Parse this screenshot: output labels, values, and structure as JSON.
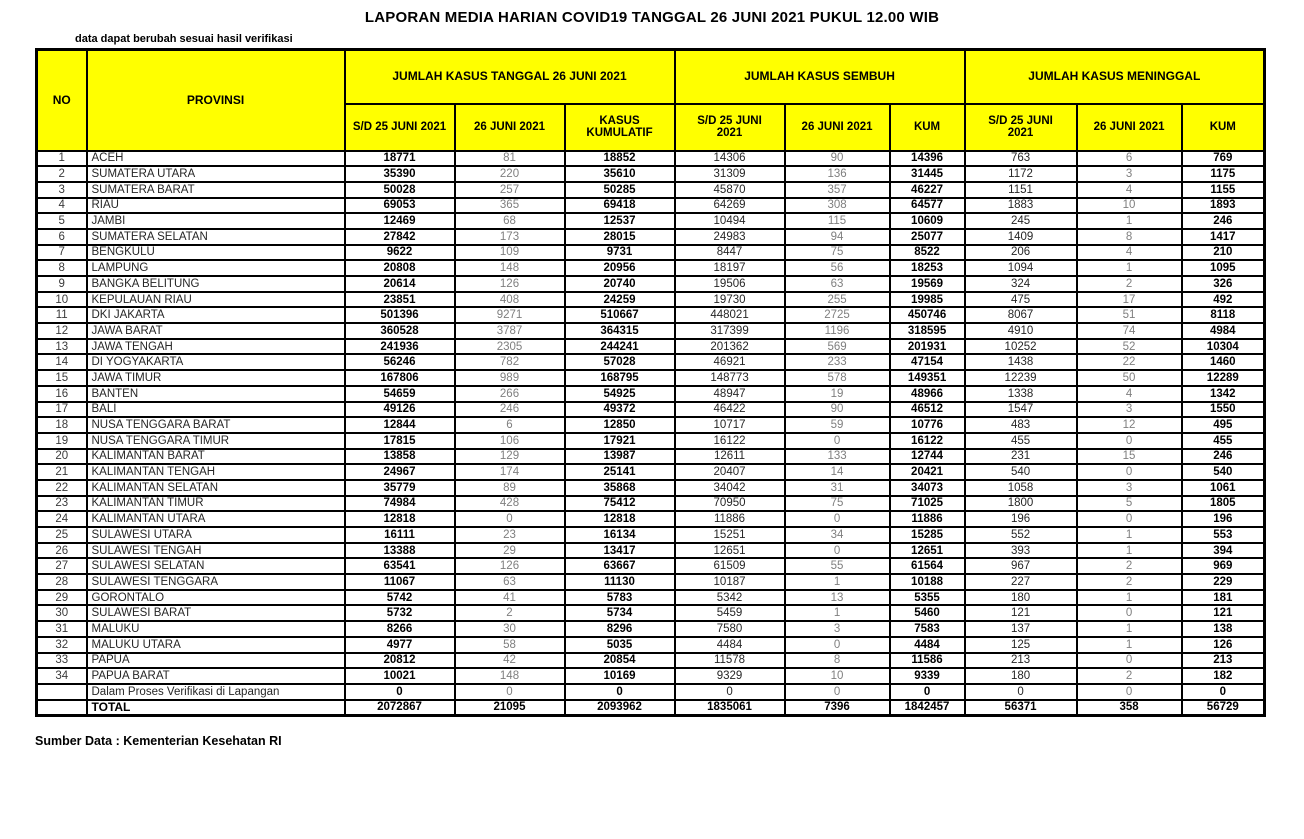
{
  "title": "LAPORAN MEDIA HARIAN COVID19 TANGGAL 26 JUNI 2021 PUKUL 12.00 WIB",
  "note": "data dapat berubah sesuai hasil verifikasi",
  "source": "Sumber Data : Kementerian Kesehatan RI",
  "colors": {
    "header_bg": "#ffff00",
    "border": "#000000",
    "bold_text": "#000000",
    "muted_text": "#7f7f7f"
  },
  "table": {
    "header": {
      "no": "NO",
      "provinsi": "PROVINSI",
      "groups": [
        {
          "label": "JUMLAH KASUS TANGGAL 26 JUNI 2021",
          "cols": [
            "S/D 25 JUNI 2021",
            "26 JUNI 2021",
            "KASUS KUMULATIF"
          ]
        },
        {
          "label": "JUMLAH KASUS SEMBUH",
          "cols": [
            "S/D 25 JUNI 2021",
            "26 JUNI 2021",
            "KUM"
          ]
        },
        {
          "label": "JUMLAH KASUS MENINGGAL",
          "cols": [
            "S/D 25 JUNI 2021",
            "26 JUNI 2021",
            "KUM"
          ]
        }
      ]
    },
    "rows": [
      {
        "no": "1",
        "provinsi": "ACEH",
        "values": [
          "18771",
          "81",
          "18852",
          "14306",
          "90",
          "14396",
          "763",
          "6",
          "769"
        ]
      },
      {
        "no": "2",
        "provinsi": "SUMATERA UTARA",
        "values": [
          "35390",
          "220",
          "35610",
          "31309",
          "136",
          "31445",
          "1172",
          "3",
          "1175"
        ]
      },
      {
        "no": "3",
        "provinsi": "SUMATERA BARAT",
        "values": [
          "50028",
          "257",
          "50285",
          "45870",
          "357",
          "46227",
          "1151",
          "4",
          "1155"
        ]
      },
      {
        "no": "4",
        "provinsi": "RIAU",
        "values": [
          "69053",
          "365",
          "69418",
          "64269",
          "308",
          "64577",
          "1883",
          "10",
          "1893"
        ]
      },
      {
        "no": "5",
        "provinsi": "JAMBI",
        "values": [
          "12469",
          "68",
          "12537",
          "10494",
          "115",
          "10609",
          "245",
          "1",
          "246"
        ]
      },
      {
        "no": "6",
        "provinsi": "SUMATERA SELATAN",
        "values": [
          "27842",
          "173",
          "28015",
          "24983",
          "94",
          "25077",
          "1409",
          "8",
          "1417"
        ]
      },
      {
        "no": "7",
        "provinsi": "BENGKULU",
        "values": [
          "9622",
          "109",
          "9731",
          "8447",
          "75",
          "8522",
          "206",
          "4",
          "210"
        ]
      },
      {
        "no": "8",
        "provinsi": "LAMPUNG",
        "values": [
          "20808",
          "148",
          "20956",
          "18197",
          "56",
          "18253",
          "1094",
          "1",
          "1095"
        ]
      },
      {
        "no": "9",
        "provinsi": "BANGKA BELITUNG",
        "values": [
          "20614",
          "126",
          "20740",
          "19506",
          "63",
          "19569",
          "324",
          "2",
          "326"
        ]
      },
      {
        "no": "10",
        "provinsi": "KEPULAUAN RIAU",
        "values": [
          "23851",
          "408",
          "24259",
          "19730",
          "255",
          "19985",
          "475",
          "17",
          "492"
        ]
      },
      {
        "no": "11",
        "provinsi": "DKI JAKARTA",
        "values": [
          "501396",
          "9271",
          "510667",
          "448021",
          "2725",
          "450746",
          "8067",
          "51",
          "8118"
        ]
      },
      {
        "no": "12",
        "provinsi": "JAWA BARAT",
        "values": [
          "360528",
          "3787",
          "364315",
          "317399",
          "1196",
          "318595",
          "4910",
          "74",
          "4984"
        ]
      },
      {
        "no": "13",
        "provinsi": "JAWA TENGAH",
        "values": [
          "241936",
          "2305",
          "244241",
          "201362",
          "569",
          "201931",
          "10252",
          "52",
          "10304"
        ]
      },
      {
        "no": "14",
        "provinsi": "DI YOGYAKARTA",
        "values": [
          "56246",
          "782",
          "57028",
          "46921",
          "233",
          "47154",
          "1438",
          "22",
          "1460"
        ]
      },
      {
        "no": "15",
        "provinsi": "JAWA TIMUR",
        "values": [
          "167806",
          "989",
          "168795",
          "148773",
          "578",
          "149351",
          "12239",
          "50",
          "12289"
        ]
      },
      {
        "no": "16",
        "provinsi": "BANTEN",
        "values": [
          "54659",
          "266",
          "54925",
          "48947",
          "19",
          "48966",
          "1338",
          "4",
          "1342"
        ]
      },
      {
        "no": "17",
        "provinsi": "BALI",
        "values": [
          "49126",
          "246",
          "49372",
          "46422",
          "90",
          "46512",
          "1547",
          "3",
          "1550"
        ]
      },
      {
        "no": "18",
        "provinsi": "NUSA TENGGARA BARAT",
        "values": [
          "12844",
          "6",
          "12850",
          "10717",
          "59",
          "10776",
          "483",
          "12",
          "495"
        ]
      },
      {
        "no": "19",
        "provinsi": "NUSA TENGGARA TIMUR",
        "values": [
          "17815",
          "106",
          "17921",
          "16122",
          "0",
          "16122",
          "455",
          "0",
          "455"
        ]
      },
      {
        "no": "20",
        "provinsi": "KALIMANTAN BARAT",
        "values": [
          "13858",
          "129",
          "13987",
          "12611",
          "133",
          "12744",
          "231",
          "15",
          "246"
        ]
      },
      {
        "no": "21",
        "provinsi": "KALIMANTAN TENGAH",
        "values": [
          "24967",
          "174",
          "25141",
          "20407",
          "14",
          "20421",
          "540",
          "0",
          "540"
        ]
      },
      {
        "no": "22",
        "provinsi": "KALIMANTAN SELATAN",
        "values": [
          "35779",
          "89",
          "35868",
          "34042",
          "31",
          "34073",
          "1058",
          "3",
          "1061"
        ]
      },
      {
        "no": "23",
        "provinsi": "KALIMANTAN TIMUR",
        "values": [
          "74984",
          "428",
          "75412",
          "70950",
          "75",
          "71025",
          "1800",
          "5",
          "1805"
        ]
      },
      {
        "no": "24",
        "provinsi": "KALIMANTAN UTARA",
        "values": [
          "12818",
          "0",
          "12818",
          "11886",
          "0",
          "11886",
          "196",
          "0",
          "196"
        ]
      },
      {
        "no": "25",
        "provinsi": "SULAWESI UTARA",
        "values": [
          "16111",
          "23",
          "16134",
          "15251",
          "34",
          "15285",
          "552",
          "1",
          "553"
        ]
      },
      {
        "no": "26",
        "provinsi": "SULAWESI TENGAH",
        "values": [
          "13388",
          "29",
          "13417",
          "12651",
          "0",
          "12651",
          "393",
          "1",
          "394"
        ]
      },
      {
        "no": "27",
        "provinsi": "SULAWESI SELATAN",
        "values": [
          "63541",
          "126",
          "63667",
          "61509",
          "55",
          "61564",
          "967",
          "2",
          "969"
        ]
      },
      {
        "no": "28",
        "provinsi": "SULAWESI TENGGARA",
        "values": [
          "11067",
          "63",
          "11130",
          "10187",
          "1",
          "10188",
          "227",
          "2",
          "229"
        ]
      },
      {
        "no": "29",
        "provinsi": "GORONTALO",
        "values": [
          "5742",
          "41",
          "5783",
          "5342",
          "13",
          "5355",
          "180",
          "1",
          "181"
        ]
      },
      {
        "no": "30",
        "provinsi": "SULAWESI BARAT",
        "values": [
          "5732",
          "2",
          "5734",
          "5459",
          "1",
          "5460",
          "121",
          "0",
          "121"
        ]
      },
      {
        "no": "31",
        "provinsi": "MALUKU",
        "values": [
          "8266",
          "30",
          "8296",
          "7580",
          "3",
          "7583",
          "137",
          "1",
          "138"
        ]
      },
      {
        "no": "32",
        "provinsi": "MALUKU UTARA",
        "values": [
          "4977",
          "58",
          "5035",
          "4484",
          "0",
          "4484",
          "125",
          "1",
          "126"
        ]
      },
      {
        "no": "33",
        "provinsi": "PAPUA",
        "values": [
          "20812",
          "42",
          "20854",
          "11578",
          "8",
          "11586",
          "213",
          "0",
          "213"
        ]
      },
      {
        "no": "34",
        "provinsi": "PAPUA BARAT",
        "values": [
          "10021",
          "148",
          "10169",
          "9329",
          "10",
          "9339",
          "180",
          "2",
          "182"
        ]
      }
    ],
    "verification_row": {
      "no": "",
      "provinsi": "Dalam Proses Verifikasi di Lapangan",
      "values": [
        "0",
        "0",
        "0",
        "0",
        "0",
        "0",
        "0",
        "0",
        "0"
      ]
    },
    "total_row": {
      "label": "TOTAL",
      "values": [
        "2072867",
        "21095",
        "2093962",
        "1835061",
        "7396",
        "1842457",
        "56371",
        "358",
        "56729"
      ]
    }
  }
}
